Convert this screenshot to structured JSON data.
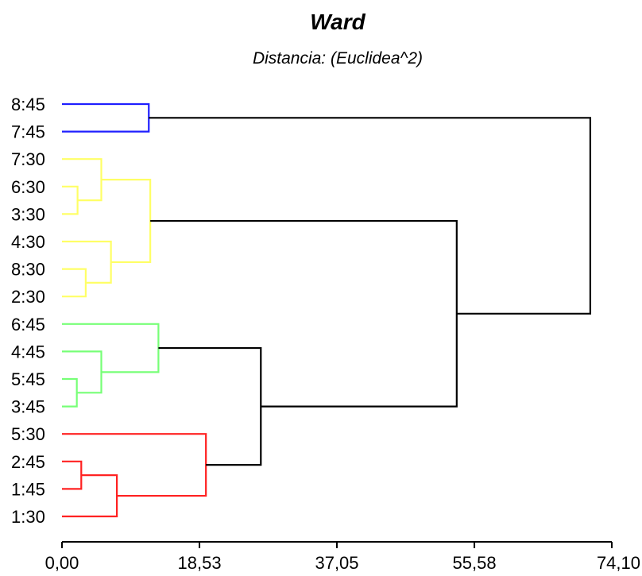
{
  "chart_data": {
    "type": "dendrogram",
    "title": "Ward",
    "subtitle": "Distancia: (Euclidea^2)",
    "xlim": [
      0,
      74.1
    ],
    "xticks": [
      "0,00",
      "18,53",
      "37,05",
      "55,58",
      "74,10"
    ],
    "xtick_values": [
      0,
      18.53,
      37.05,
      55.58,
      74.1
    ],
    "leaves": [
      "8:45",
      "7:45",
      "7:30",
      "6:30",
      "3:30",
      "4:30",
      "8:30",
      "2:30",
      "6:45",
      "4:45",
      "5:45",
      "3:45",
      "5:30",
      "2:45",
      "1:45",
      "1:30"
    ],
    "colors": {
      "blue": "#1f1fff",
      "yellow": "#ffff66",
      "green": "#77ff77",
      "red": "#ff2222",
      "black": "#000000"
    },
    "merges": [
      {
        "id": "m1",
        "children": [
          "8:45",
          "7:45"
        ],
        "height": 11.7,
        "color": "blue"
      },
      {
        "id": "m2",
        "children": [
          "6:30",
          "3:30"
        ],
        "height": 2.1,
        "color": "yellow"
      },
      {
        "id": "m3",
        "children": [
          "7:30",
          "m2"
        ],
        "height": 5.3,
        "color": "yellow"
      },
      {
        "id": "m4",
        "children": [
          "8:30",
          "2:30"
        ],
        "height": 3.2,
        "color": "yellow"
      },
      {
        "id": "m5",
        "children": [
          "4:30",
          "m4"
        ],
        "height": 6.6,
        "color": "yellow"
      },
      {
        "id": "m6",
        "children": [
          "m3",
          "m5"
        ],
        "height": 11.9,
        "color": "yellow"
      },
      {
        "id": "m7",
        "children": [
          "5:45",
          "3:45"
        ],
        "height": 2.0,
        "color": "green"
      },
      {
        "id": "m8",
        "children": [
          "4:45",
          "m7"
        ],
        "height": 5.3,
        "color": "green"
      },
      {
        "id": "m9",
        "children": [
          "6:45",
          "m8"
        ],
        "height": 13.0,
        "color": "green"
      },
      {
        "id": "m10",
        "children": [
          "2:45",
          "1:45"
        ],
        "height": 2.6,
        "color": "red"
      },
      {
        "id": "m11",
        "children": [
          "m10",
          "1:30"
        ],
        "height": 7.4,
        "color": "red"
      },
      {
        "id": "m12",
        "children": [
          "5:30",
          "m11"
        ],
        "height": 19.4,
        "color": "red"
      },
      {
        "id": "m13",
        "children": [
          "m9",
          "m12"
        ],
        "height": 26.8,
        "color": "black"
      },
      {
        "id": "m14",
        "children": [
          "m6",
          "m13"
        ],
        "height": 53.2,
        "color": "black"
      },
      {
        "id": "m15",
        "children": [
          "m1",
          "m14"
        ],
        "height": 71.2,
        "color": "black"
      }
    ]
  }
}
